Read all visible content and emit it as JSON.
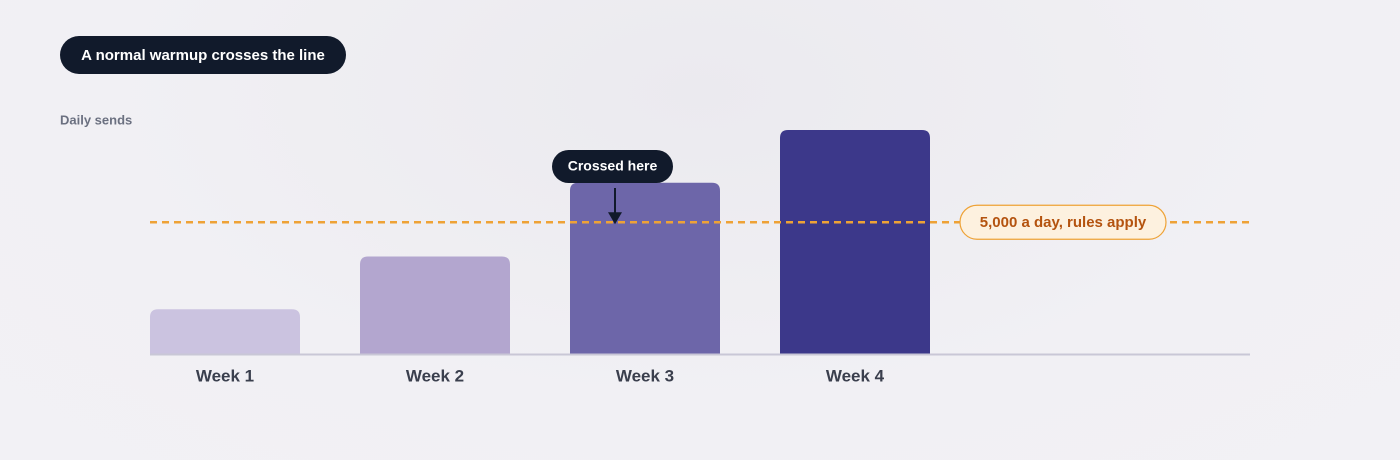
{
  "chart_data": {
    "type": "bar",
    "title": "A normal warmup crosses the line",
    "y_label": "Daily sends",
    "categories": [
      "Week 1",
      "Week 2",
      "Week 3",
      "Week 4"
    ],
    "values": [
      1700,
      3700,
      6500,
      8500
    ],
    "colors": [
      "#cbc3e0",
      "#b3a6cf",
      "#6d66a9",
      "#3c388a"
    ],
    "threshold": {
      "value": 5000,
      "label": "5,000 a day, rules apply",
      "color": "#eea236"
    },
    "annotation": "Crossed here"
  }
}
